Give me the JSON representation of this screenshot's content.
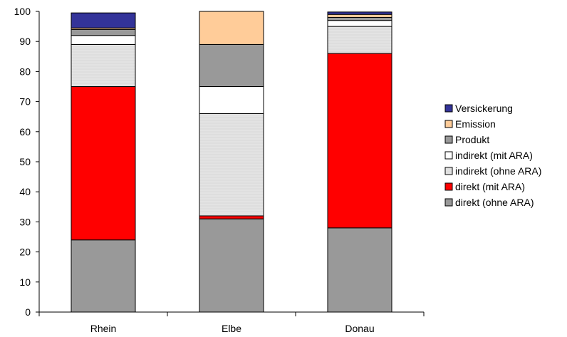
{
  "chart_data": {
    "type": "bar",
    "stacked": true,
    "categories": [
      "Rhein",
      "Elbe",
      "Donau"
    ],
    "ylim": [
      0,
      100
    ],
    "yticks": [
      0,
      10,
      20,
      30,
      40,
      50,
      60,
      70,
      80,
      90,
      100
    ],
    "grid": false,
    "legend_position": "right",
    "series": [
      {
        "name": "direkt (ohne ARA)",
        "color": "#999999",
        "values": [
          24,
          31,
          28
        ]
      },
      {
        "name": "direkt (mit ARA)",
        "color": "#ff0000",
        "values": [
          51,
          1,
          58
        ]
      },
      {
        "name": "indirekt (ohne ARA)",
        "color": "#e3e3e3",
        "pattern": "hatched-light-gray",
        "values": [
          14,
          34,
          9
        ]
      },
      {
        "name": "indirekt (mit ARA)",
        "color": "#ffffff",
        "values": [
          3,
          9,
          2
        ]
      },
      {
        "name": "Produkt",
        "color": "#999999",
        "values": [
          2,
          14,
          1
        ]
      },
      {
        "name": "Emission",
        "color": "#ffcc99",
        "values": [
          0.5,
          11,
          1
        ]
      },
      {
        "name": "Versickerung",
        "color": "#333399",
        "values": [
          5,
          0,
          0.8
        ]
      }
    ]
  }
}
